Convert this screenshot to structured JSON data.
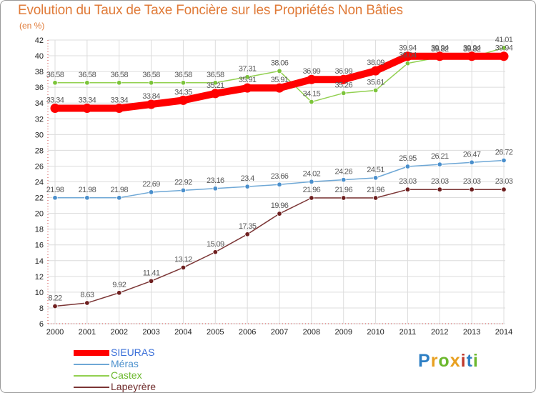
{
  "header": {
    "title": "Evolution du Taux de Taxe Foncière sur les Propriétés Non Bâties",
    "subtitle": "(en %)"
  },
  "logo": {
    "text": "Proxiti",
    "colors": [
      "#2e7fc4",
      "#e8a020",
      "#6cb82e",
      "#e8a020",
      "#c0392b",
      "#2e7fc4",
      "#6cb82e"
    ]
  },
  "chart_data": {
    "type": "line",
    "title": "Evolution du Taux de Taxe Foncière sur les Propriétés Non Bâties",
    "ylabel": "(en %)",
    "xlabel": "",
    "ylim": [
      6,
      42
    ],
    "yticks": [
      6,
      8,
      10,
      12,
      14,
      16,
      18,
      20,
      22,
      24,
      26,
      28,
      30,
      32,
      34,
      36,
      38,
      40,
      42
    ],
    "grid": true,
    "legend_position": "bottom-left",
    "categories": [
      "2000",
      "2001",
      "2002",
      "2003",
      "2004",
      "2005",
      "2006",
      "2007",
      "2008",
      "2009",
      "2010",
      "2011",
      "2012",
      "2013",
      "2014"
    ],
    "series": [
      {
        "name": "SIEURAS",
        "color": "#ff0000",
        "values": [
          33.34,
          33.34,
          33.34,
          33.84,
          34.35,
          35.21,
          35.91,
          35.91,
          36.99,
          36.99,
          38.09,
          39.94,
          39.94,
          39.94,
          39.94
        ],
        "labels": [
          "33.34",
          "33.34",
          "33.34",
          "33.84",
          "34.35",
          "35.21",
          "35.91",
          "35.91",
          "36.99",
          "36.99",
          "38.09",
          "39.94",
          "39.94",
          "39.94",
          "39.94"
        ]
      },
      {
        "name": "Méras",
        "color": "#6fa8d6",
        "values": [
          21.98,
          21.98,
          21.98,
          22.69,
          22.92,
          23.16,
          23.4,
          23.66,
          24.02,
          24.26,
          24.51,
          25.95,
          26.21,
          26.47,
          26.72
        ],
        "labels": [
          "21.98",
          "21.98",
          "21.98",
          "22.69",
          "22.92",
          "23.16",
          "23.4",
          "23.66",
          "24.02",
          "24.26",
          "24.51",
          "25.95",
          "26.21",
          "26.47",
          "26.72"
        ]
      },
      {
        "name": "Castex",
        "color": "#92d050",
        "values": [
          36.58,
          36.58,
          36.58,
          36.58,
          36.58,
          36.58,
          37.31,
          38.06,
          34.15,
          35.26,
          35.61,
          39.04,
          39.82,
          39.82,
          41.01
        ],
        "labels": [
          "36.58",
          "36.58",
          "36.58",
          "36.58",
          "36.58",
          "36.58",
          "37.31",
          "38.06",
          "34.15",
          "35.26",
          "35.61",
          "39.04",
          "39.82",
          "39.82",
          "41.01"
        ]
      },
      {
        "name": "Lapeyrère",
        "color": "#7b3535",
        "values": [
          8.22,
          8.63,
          9.92,
          11.41,
          13.12,
          15.09,
          17.35,
          19.96,
          21.96,
          21.96,
          21.96,
          23.03,
          23.03,
          23.03,
          23.03
        ],
        "labels": [
          "8.22",
          "8.63",
          "9.92",
          "11.41",
          "13.12",
          "15.09",
          "17.35",
          "19.96",
          "21.96",
          "21.96",
          "21.96",
          "23.03",
          "23.03",
          "23.03",
          "23.03"
        ]
      }
    ]
  }
}
